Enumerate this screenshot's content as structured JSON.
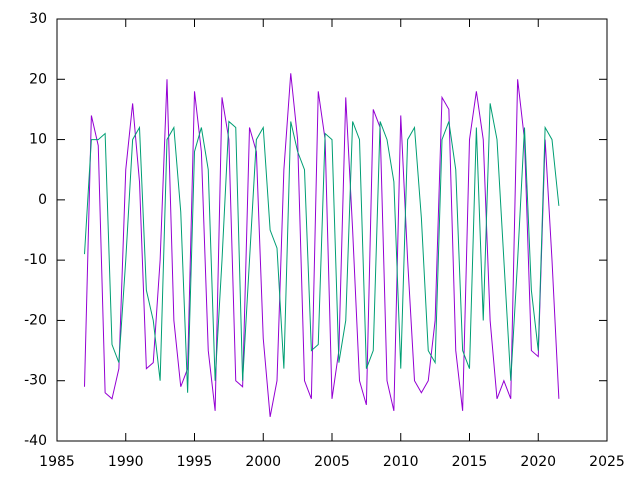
{
  "chart_data": {
    "type": "line",
    "x": [
      1987.0,
      1987.5,
      1988.0,
      1988.5,
      1989.0,
      1989.5,
      1990.0,
      1990.5,
      1991.0,
      1991.5,
      1992.0,
      1992.5,
      1993.0,
      1993.5,
      1994.0,
      1994.5,
      1995.0,
      1995.5,
      1996.0,
      1996.5,
      1997.0,
      1997.5,
      1998.0,
      1998.5,
      1999.0,
      1999.5,
      2000.0,
      2000.5,
      2001.0,
      2001.5,
      2002.0,
      2002.5,
      2003.0,
      2003.5,
      2004.0,
      2004.5,
      2005.0,
      2005.5,
      2006.0,
      2006.5,
      2007.0,
      2007.5,
      2008.0,
      2008.5,
      2009.0,
      2009.5,
      2010.0,
      2010.5,
      2011.0,
      2011.5,
      2012.0,
      2012.5,
      2013.0,
      2013.5,
      2014.0,
      2014.5,
      2015.0,
      2015.5,
      2016.0,
      2016.5,
      2017.0,
      2017.5,
      2018.0,
      2018.5,
      2019.0,
      2019.5,
      2020.0,
      2020.5,
      2021.0,
      2021.5
    ],
    "series": [
      {
        "color": "#9400d3",
        "values": [
          -31,
          14,
          9,
          -32,
          -33,
          -28,
          5,
          16,
          3,
          -28,
          -27,
          -10,
          20,
          -20,
          -31,
          -28,
          18,
          8,
          -25,
          -35,
          17,
          10,
          -30,
          -31,
          12,
          8,
          -23,
          -36,
          -30,
          5,
          21,
          10,
          -30,
          -33,
          18,
          10,
          -33,
          -25,
          17,
          -5,
          -30,
          -34,
          15,
          12,
          -30,
          -35,
          14,
          -10,
          -30,
          -32,
          -30,
          -20,
          17,
          15,
          -25,
          -35,
          10,
          18,
          10,
          -20,
          -33,
          -30,
          -33,
          20,
          10,
          -25,
          -26,
          10,
          -10,
          -33
        ]
      },
      {
        "color": "#009e73",
        "values": [
          -9,
          10,
          10,
          11,
          -24,
          -27,
          -10,
          10,
          12,
          -15,
          -20,
          -30,
          10,
          12,
          -2,
          -32,
          8,
          12,
          5,
          -30,
          -10,
          13,
          12,
          -30,
          -10,
          10,
          12,
          -5,
          -8,
          -28,
          13,
          8,
          5,
          -25,
          -24,
          11,
          10,
          -27,
          -20,
          13,
          10,
          -28,
          -25,
          13,
          10,
          3,
          -28,
          10,
          12,
          -3,
          -25,
          -27,
          10,
          13,
          5,
          -25,
          -28,
          12,
          -20,
          16,
          10,
          -10,
          -30,
          -10,
          12,
          -15,
          -25,
          12,
          10,
          -1
        ]
      }
    ],
    "xlim": [
      1985,
      2025
    ],
    "xticks": [
      1985,
      1990,
      1995,
      2000,
      2005,
      2010,
      2015,
      2020,
      2025
    ],
    "ylim": [
      -40,
      30
    ],
    "yticks": [
      -40,
      -30,
      -20,
      -10,
      0,
      10,
      20,
      30
    ]
  }
}
